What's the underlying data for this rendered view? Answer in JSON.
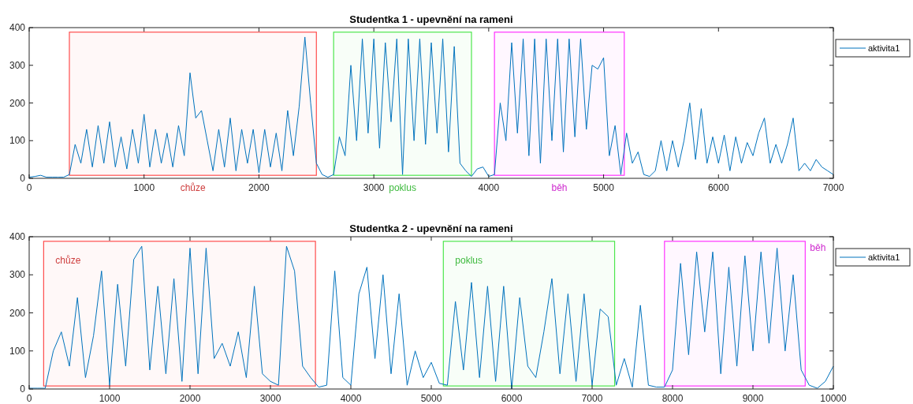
{
  "chart_data": [
    {
      "type": "line",
      "title": "Studentka 1 - upevnění na rameni",
      "legend": "top right",
      "grid": false,
      "xlim": [
        0,
        7000
      ],
      "xticks": [
        0,
        1000,
        2000,
        3000,
        4000,
        5000,
        6000,
        7000
      ],
      "ylim": [
        0,
        400
      ],
      "yticks": [
        0,
        100,
        200,
        300,
        400
      ],
      "series": [
        {
          "name": "aktivita1",
          "color": "#0072bd",
          "x": [
            0,
            50,
            100,
            150,
            200,
            250,
            300,
            350,
            400,
            450,
            500,
            550,
            600,
            650,
            700,
            750,
            800,
            850,
            900,
            950,
            1000,
            1050,
            1100,
            1150,
            1200,
            1250,
            1300,
            1350,
            1400,
            1450,
            1500,
            1550,
            1600,
            1650,
            1700,
            1750,
            1800,
            1850,
            1900,
            1950,
            2000,
            2050,
            2100,
            2150,
            2200,
            2250,
            2300,
            2350,
            2400,
            2450,
            2500,
            2550,
            2600,
            2650,
            2700,
            2750,
            2800,
            2850,
            2900,
            2950,
            3000,
            3050,
            3100,
            3150,
            3200,
            3250,
            3300,
            3350,
            3400,
            3450,
            3500,
            3550,
            3600,
            3650,
            3700,
            3750,
            3800,
            3850,
            3900,
            3950,
            4000,
            4050,
            4100,
            4150,
            4200,
            4250,
            4300,
            4350,
            4400,
            4450,
            4500,
            4550,
            4600,
            4650,
            4700,
            4750,
            4800,
            4850,
            4900,
            4950,
            5000,
            5050,
            5100,
            5150,
            5200,
            5250,
            5300,
            5350,
            5400,
            5450,
            5500,
            5550,
            5600,
            5650,
            5700,
            5750,
            5800,
            5850,
            5900,
            5950,
            6000,
            6050,
            6100,
            6150,
            6200,
            6250,
            6300,
            6350,
            6400,
            6450,
            6500,
            6550,
            6600,
            6650,
            6700,
            6750,
            6800,
            6850,
            6900,
            6950,
            7000
          ],
          "values": [
            3,
            5,
            8,
            3,
            3,
            3,
            3,
            10,
            90,
            40,
            130,
            30,
            140,
            40,
            150,
            30,
            110,
            25,
            130,
            40,
            170,
            30,
            130,
            40,
            120,
            30,
            140,
            60,
            280,
            160,
            180,
            100,
            20,
            130,
            30,
            160,
            20,
            130,
            40,
            130,
            15,
            130,
            30,
            120,
            20,
            180,
            60,
            190,
            375,
            200,
            40,
            10,
            3,
            10,
            110,
            60,
            300,
            100,
            370,
            120,
            370,
            80,
            360,
            150,
            370,
            10,
            370,
            100,
            370,
            90,
            360,
            120,
            370,
            70,
            350,
            40,
            20,
            5,
            25,
            30,
            5,
            10,
            200,
            100,
            360,
            120,
            370,
            60,
            370,
            40,
            370,
            100,
            370,
            70,
            370,
            110,
            370,
            130,
            300,
            290,
            320,
            60,
            140,
            10,
            120,
            40,
            70,
            10,
            5,
            20,
            100,
            20,
            100,
            30,
            100,
            200,
            50,
            185,
            40,
            110,
            40,
            115,
            20,
            110,
            40,
            95,
            60,
            120,
            160,
            40,
            90,
            40,
            90,
            160,
            20,
            40,
            20,
            50,
            30,
            20,
            10
          ]
        }
      ],
      "bands": [
        {
          "axis": "x",
          "from": 350,
          "to": 2500,
          "label": "chůze",
          "color": "#ff4d4d"
        },
        {
          "axis": "x",
          "from": 2650,
          "to": 3850,
          "label": "poklus",
          "color": "#4de64d"
        },
        {
          "axis": "x",
          "from": 4050,
          "to": 5180,
          "label": "běh",
          "color": "#ff33ff"
        }
      ]
    },
    {
      "type": "line",
      "title": "Studentka 2 - upevnění na rameni",
      "legend": "top right",
      "grid": false,
      "xlim": [
        0,
        10000
      ],
      "xticks": [
        0,
        1000,
        2000,
        3000,
        4000,
        5000,
        6000,
        7000,
        8000,
        9000,
        10000
      ],
      "ylim": [
        0,
        400
      ],
      "yticks": [
        0,
        100,
        200,
        300,
        400
      ],
      "series": [
        {
          "name": "aktivita1",
          "color": "#0072bd",
          "x": [
            0,
            100,
            200,
            300,
            400,
            500,
            600,
            700,
            800,
            900,
            1000,
            1100,
            1200,
            1300,
            1400,
            1500,
            1600,
            1700,
            1800,
            1900,
            2000,
            2100,
            2200,
            2300,
            2400,
            2500,
            2600,
            2700,
            2800,
            2900,
            3000,
            3100,
            3200,
            3300,
            3400,
            3500,
            3600,
            3700,
            3800,
            3900,
            4000,
            4100,
            4200,
            4300,
            4400,
            4500,
            4600,
            4700,
            4800,
            4900,
            5000,
            5100,
            5200,
            5300,
            5400,
            5500,
            5600,
            5700,
            5800,
            5900,
            6000,
            6100,
            6200,
            6300,
            6400,
            6500,
            6600,
            6700,
            6800,
            6900,
            7000,
            7100,
            7200,
            7300,
            7400,
            7500,
            7600,
            7700,
            7800,
            7900,
            8000,
            8100,
            8200,
            8300,
            8400,
            8500,
            8600,
            8700,
            8800,
            8900,
            9000,
            9100,
            9200,
            9300,
            9400,
            9500,
            9600,
            9700,
            9800,
            9900,
            10000
          ],
          "values": [
            2,
            2,
            2,
            100,
            150,
            60,
            240,
            30,
            140,
            310,
            10,
            275,
            60,
            340,
            375,
            50,
            270,
            40,
            290,
            20,
            370,
            40,
            370,
            80,
            120,
            60,
            150,
            30,
            270,
            40,
            20,
            10,
            375,
            310,
            60,
            30,
            5,
            10,
            310,
            30,
            10,
            250,
            320,
            80,
            300,
            40,
            250,
            10,
            100,
            30,
            70,
            15,
            10,
            230,
            50,
            280,
            30,
            270,
            20,
            270,
            0,
            240,
            60,
            30,
            150,
            290,
            40,
            250,
            20,
            250,
            10,
            210,
            190,
            10,
            80,
            5,
            220,
            10,
            5,
            5,
            50,
            330,
            90,
            360,
            150,
            360,
            40,
            320,
            60,
            350,
            100,
            360,
            120,
            370,
            100,
            300,
            50,
            10,
            2,
            20,
            60
          ]
        }
      ],
      "bands": [
        {
          "axis": "x",
          "from": 180,
          "to": 3560,
          "label": "chůze",
          "color": "#ff4d4d"
        },
        {
          "axis": "x",
          "from": 5150,
          "to": 7280,
          "label": "poklus",
          "color": "#4de64d"
        },
        {
          "axis": "x",
          "from": 7900,
          "to": 9650,
          "label": "běh",
          "color": "#ff33ff"
        }
      ]
    }
  ]
}
